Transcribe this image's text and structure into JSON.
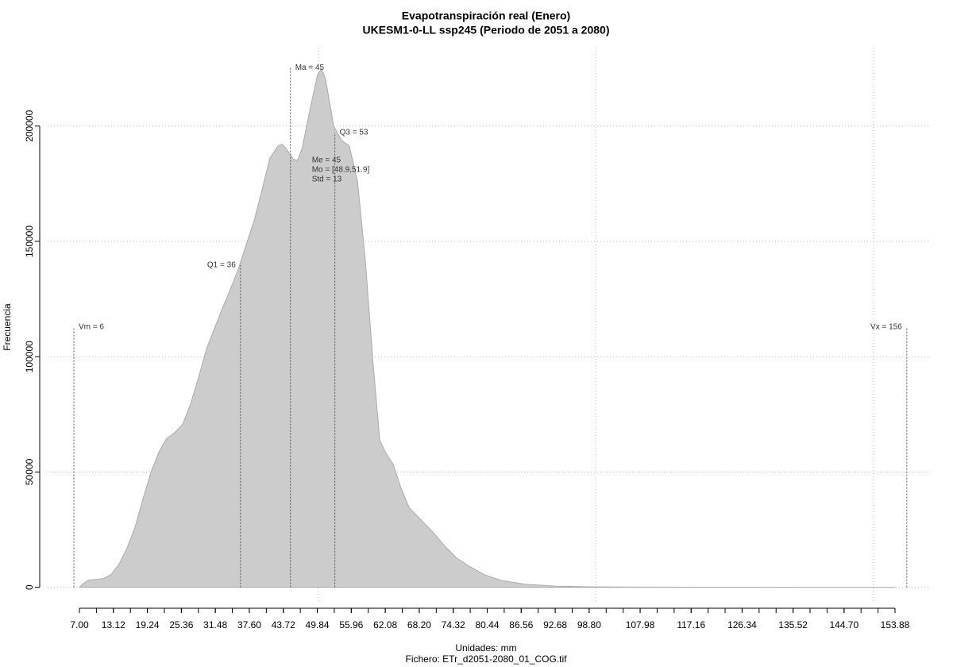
{
  "chart_data": {
    "type": "area",
    "title": "Evapotranspiración real (Enero)",
    "subtitle": "UKESM1-0-LL ssp245 (Periodo de 2051 a 2080)",
    "x_label": "Unidades: mm",
    "footer": "Fichero: ETr_d2051-2080_01_COG.tif",
    "y_label": "Frecuencia",
    "color": "#cccccc",
    "grid": true,
    "x": [
      7.0,
      7.7,
      8.7,
      9.9,
      11.3,
      12.7,
      14.2,
      15.6,
      17.0,
      18.4,
      19.9,
      21.3,
      22.7,
      24.2,
      25.6,
      27.0,
      28.5,
      29.9,
      31.3,
      32.7,
      34.2,
      35.6,
      37.0,
      38.5,
      39.9,
      41.3,
      42.8,
      43.5,
      44.2,
      45.6,
      46.3,
      47.1,
      48.5,
      49.9,
      50.6,
      51.3,
      52.8,
      54.2,
      55.6,
      57.1,
      58.5,
      59.9,
      61.1,
      62.1,
      63.5,
      64.9,
      66.4,
      68.5,
      70.6,
      72.8,
      74.9,
      77.1,
      79.9,
      82.8,
      87.1,
      92.8,
      100.0,
      107.1,
      153.9
    ],
    "values": [
      0,
      1700,
      3100,
      3400,
      3800,
      5500,
      10300,
      17200,
      25900,
      37900,
      50000,
      58600,
      64500,
      67200,
      70700,
      79300,
      91400,
      103400,
      112100,
      120700,
      129300,
      137900,
      148300,
      159300,
      172400,
      186200,
      191400,
      192100,
      190300,
      185500,
      185200,
      190300,
      206900,
      222400,
      224800,
      220700,
      200000,
      193800,
      191400,
      175900,
      141400,
      96600,
      63800,
      58600,
      53400,
      43100,
      34500,
      29300,
      24100,
      17900,
      12800,
      9300,
      5500,
      3100,
      1400,
      500,
      200,
      100,
      0
    ],
    "xlim": [
      1.28,
      160.03
    ],
    "ylim": [
      -7000,
      234000
    ],
    "xticks": [
      {
        "value": 7.0,
        "label": "7.00"
      },
      {
        "value": 13.12,
        "label": "13.12"
      },
      {
        "value": 19.24,
        "label": "19.24"
      },
      {
        "value": 25.36,
        "label": "25.36"
      },
      {
        "value": 31.48,
        "label": "31.48"
      },
      {
        "value": 37.6,
        "label": "37.60"
      },
      {
        "value": 43.72,
        "label": "43.72"
      },
      {
        "value": 49.84,
        "label": "49.84"
      },
      {
        "value": 55.96,
        "label": "55.96"
      },
      {
        "value": 62.08,
        "label": "62.08"
      },
      {
        "value": 68.2,
        "label": "68.20"
      },
      {
        "value": 74.32,
        "label": "74.32"
      },
      {
        "value": 80.44,
        "label": "80.44"
      },
      {
        "value": 86.56,
        "label": "86.56"
      },
      {
        "value": 92.68,
        "label": "92.68"
      },
      {
        "value": 98.8,
        "label": "98.80"
      },
      {
        "value": 107.98,
        "label": "107.98"
      },
      {
        "value": 117.16,
        "label": "117.16"
      },
      {
        "value": 126.34,
        "label": "126.34"
      },
      {
        "value": 135.52,
        "label": "135.52"
      },
      {
        "value": 144.7,
        "label": "144.70"
      },
      {
        "value": 153.88,
        "label": "153.88"
      }
    ],
    "xminorticks": [
      7.0,
      10.06,
      13.12,
      16.18,
      19.24,
      22.3,
      25.36,
      28.42,
      31.48,
      34.54,
      37.6,
      40.66,
      43.72,
      46.78,
      49.84,
      52.9,
      55.96,
      59.02,
      62.08,
      65.14,
      68.2,
      71.26,
      74.32,
      77.38,
      80.44,
      83.5,
      86.56,
      89.62,
      92.68,
      95.74,
      98.8,
      101.86,
      104.92,
      107.98,
      111.04,
      114.1,
      117.16,
      120.22,
      123.28,
      126.34,
      129.4,
      132.46,
      135.52,
      138.58,
      141.64,
      144.7,
      147.76,
      150.82,
      153.88
    ],
    "xgrid": [
      50,
      100,
      150
    ],
    "yticks": [
      0,
      50000,
      100000,
      150000,
      200000
    ],
    "markers": [
      {
        "label": "Vm = 6",
        "x": 6,
        "y": 112800
      },
      {
        "label": "Q1 = 36",
        "x": 36,
        "y": 139700
      },
      {
        "label": "Ma = 45",
        "x": 45,
        "y": 225200
      },
      {
        "label": "Q3 = 53",
        "x": 53,
        "y": 197200
      },
      {
        "label": "Vx = 156",
        "x": 156,
        "y": 112800
      }
    ],
    "stats": [
      "Me = 45",
      "Mo = [48.9,51.9]",
      "Std = 13"
    ]
  }
}
